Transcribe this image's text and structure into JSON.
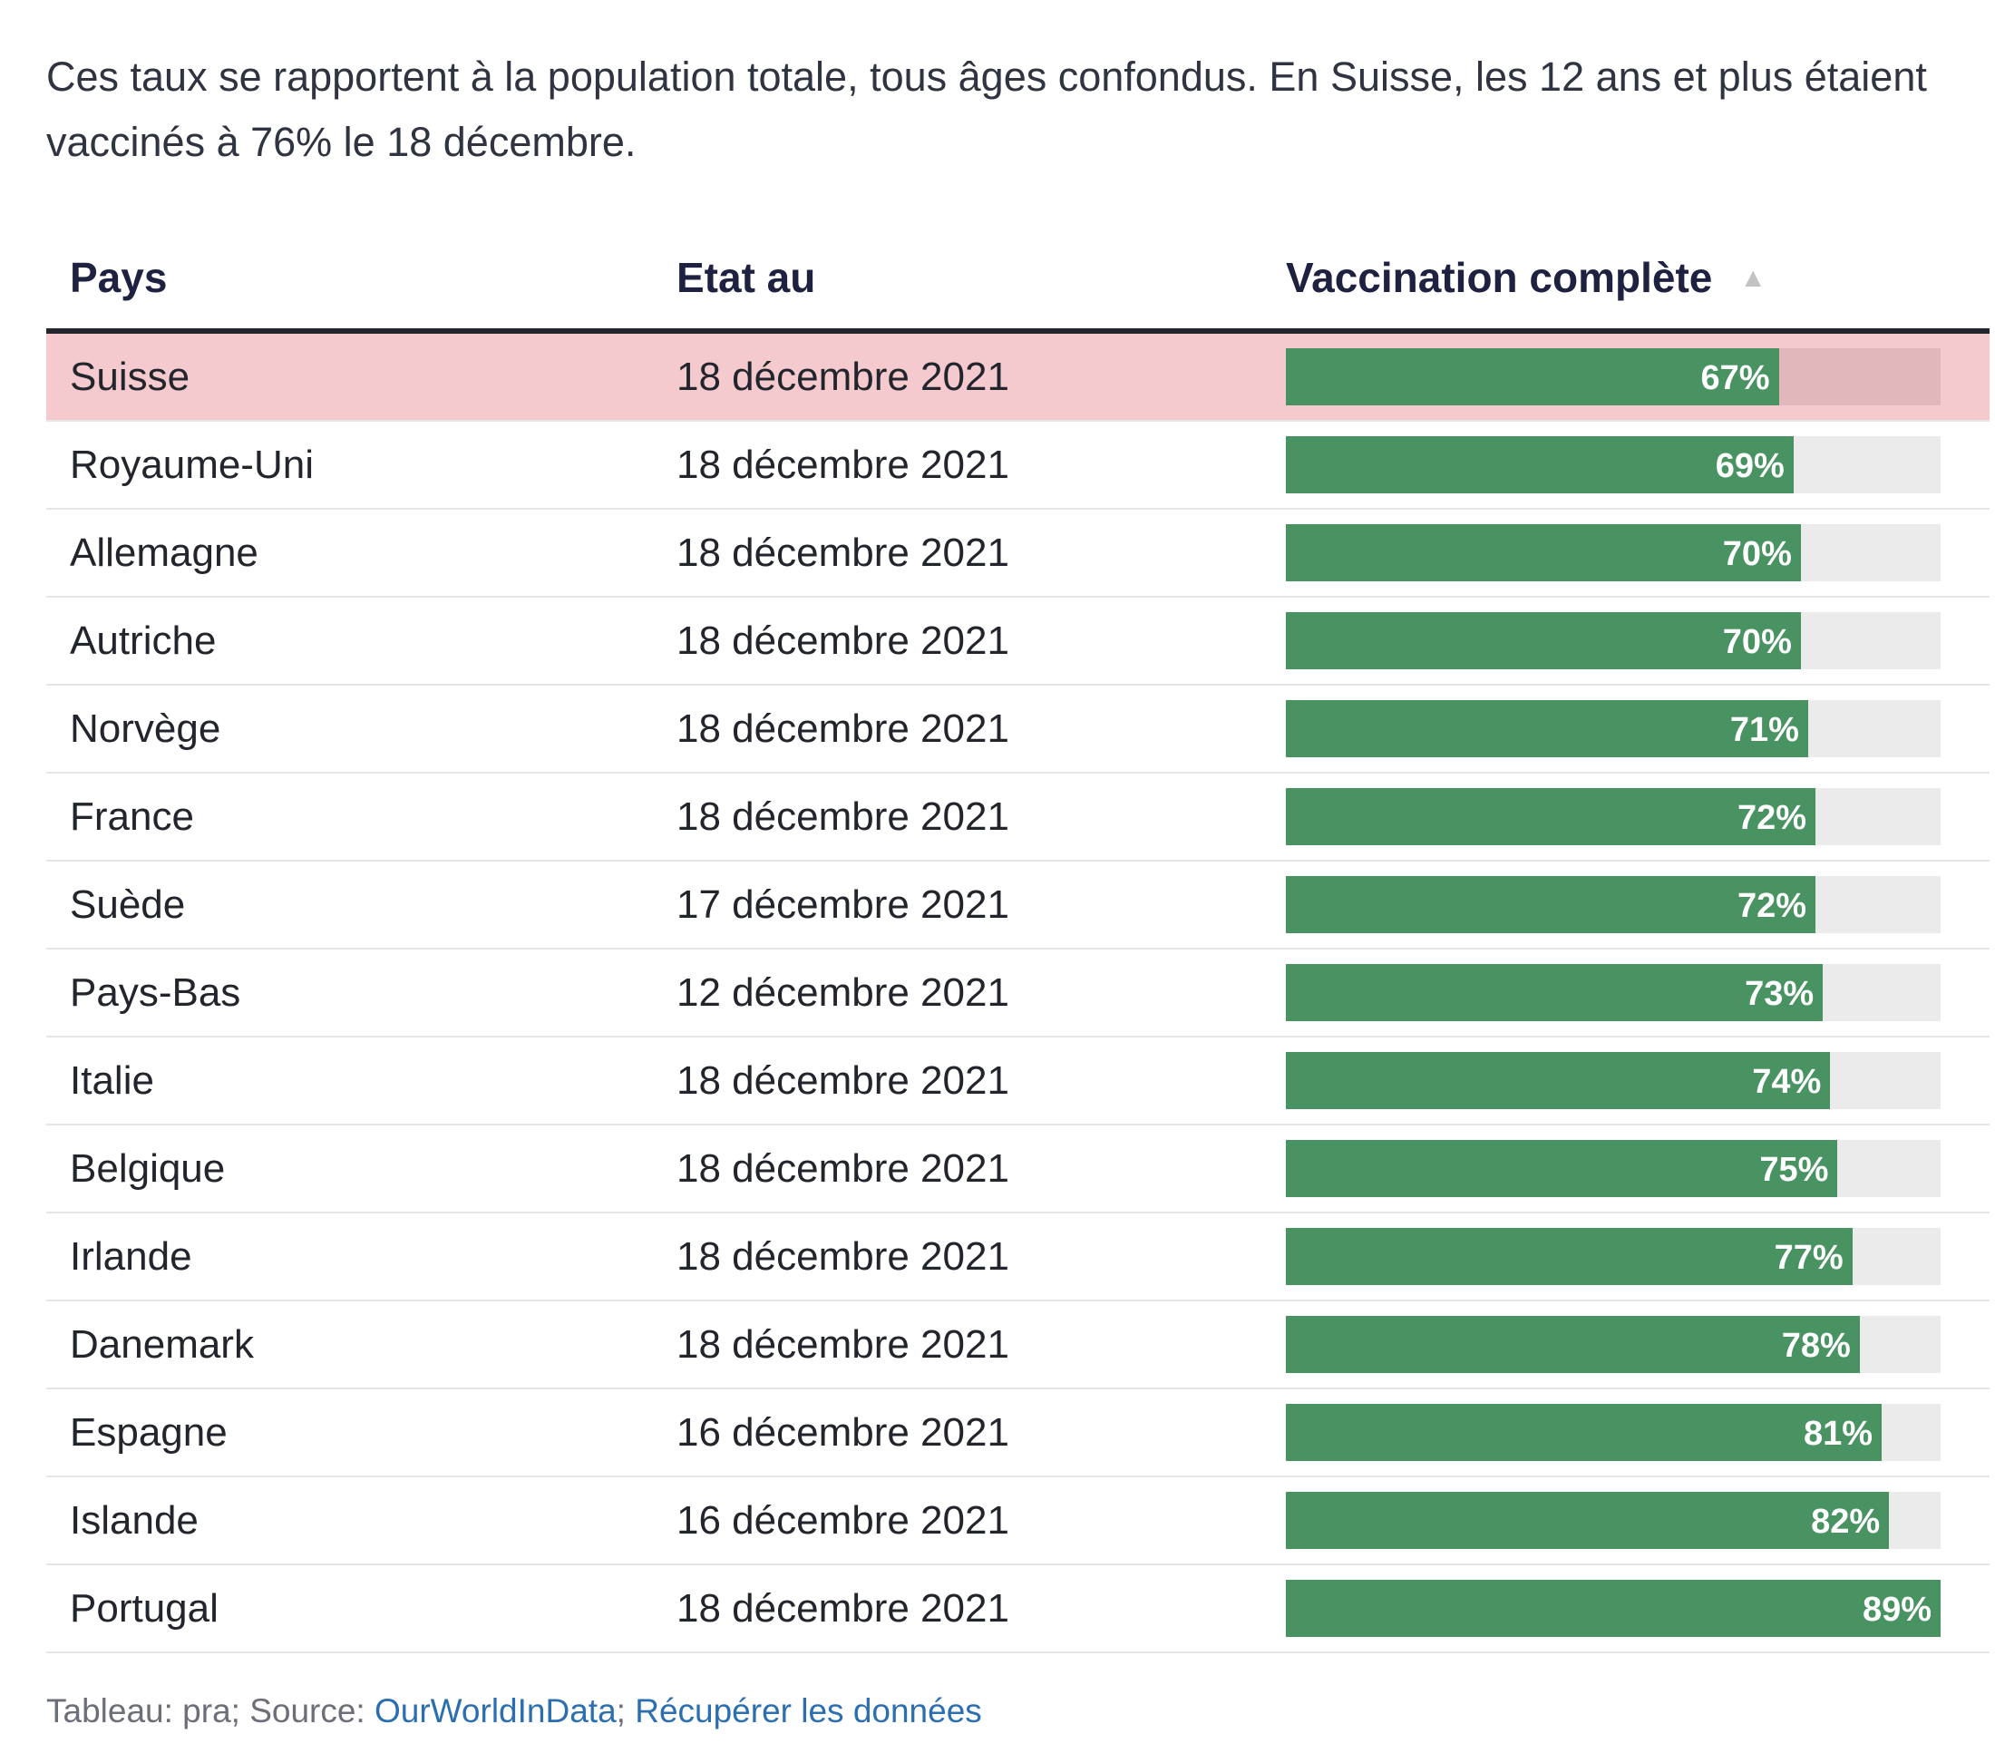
{
  "intro_text": "Ces taux se rapportent à la population totale, tous âges confondus. En Suisse, les 12 ans et plus étaient vaccinés à 76% le 18 décembre.",
  "columns": {
    "country": "Pays",
    "date": "Etat au",
    "vaccination": "Vaccination complète"
  },
  "colors": {
    "bar": "#489361",
    "track": "#ebebeb",
    "highlight_row": "#f4cace"
  },
  "chart_data": {
    "type": "table",
    "sort": {
      "column": "Vaccination complète",
      "direction": "ascending"
    },
    "xlim": [
      0,
      89
    ],
    "highlighted": "Suisse",
    "rows": [
      {
        "country": "Suisse",
        "date": "18 décembre 2021",
        "value": 67,
        "label": "67%"
      },
      {
        "country": "Royaume-Uni",
        "date": "18 décembre 2021",
        "value": 69,
        "label": "69%"
      },
      {
        "country": "Allemagne",
        "date": "18 décembre 2021",
        "value": 70,
        "label": "70%"
      },
      {
        "country": "Autriche",
        "date": "18 décembre 2021",
        "value": 70,
        "label": "70%"
      },
      {
        "country": "Norvège",
        "date": "18 décembre 2021",
        "value": 71,
        "label": "71%"
      },
      {
        "country": "France",
        "date": "18 décembre 2021",
        "value": 72,
        "label": "72%"
      },
      {
        "country": "Suède",
        "date": "17 décembre 2021",
        "value": 72,
        "label": "72%"
      },
      {
        "country": "Pays-Bas",
        "date": "12 décembre 2021",
        "value": 73,
        "label": "73%"
      },
      {
        "country": "Italie",
        "date": "18 décembre 2021",
        "value": 74,
        "label": "74%"
      },
      {
        "country": "Belgique",
        "date": "18 décembre 2021",
        "value": 75,
        "label": "75%"
      },
      {
        "country": "Irlande",
        "date": "18 décembre 2021",
        "value": 77,
        "label": "77%"
      },
      {
        "country": "Danemark",
        "date": "18 décembre 2021",
        "value": 78,
        "label": "78%"
      },
      {
        "country": "Espagne",
        "date": "16 décembre 2021",
        "value": 81,
        "label": "81%"
      },
      {
        "country": "Islande",
        "date": "16 décembre 2021",
        "value": 82,
        "label": "82%"
      },
      {
        "country": "Portugal",
        "date": "18 décembre 2021",
        "value": 89,
        "label": "89%"
      }
    ]
  },
  "footer": {
    "prefix": "Tableau: pra; Source: ",
    "source_link": "OurWorldInData",
    "separator": "; ",
    "data_link": "Récupérer les données"
  }
}
